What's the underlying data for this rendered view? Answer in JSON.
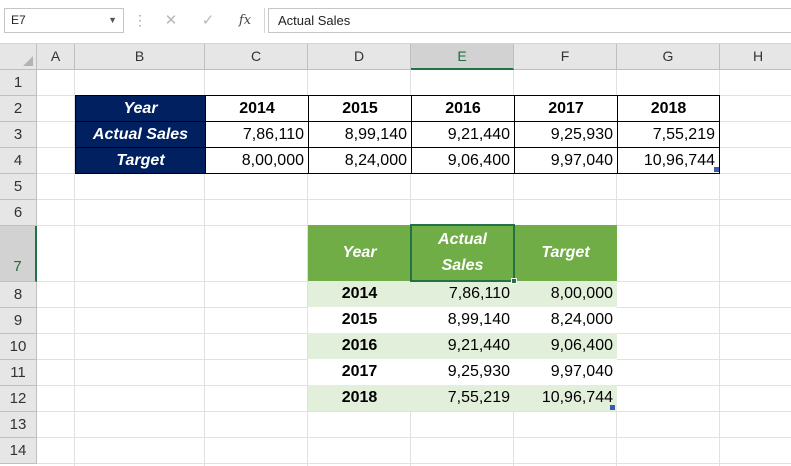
{
  "formula_bar": {
    "name_box": "E7",
    "cancel_glyph": "✕",
    "enter_glyph": "✓",
    "fx_label": "fx",
    "formula": "Actual Sales"
  },
  "columns": [
    "A",
    "B",
    "C",
    "D",
    "E",
    "F",
    "G",
    "H"
  ],
  "rows": [
    "1",
    "2",
    "3",
    "4",
    "5",
    "6",
    "7",
    "8",
    "9",
    "10",
    "11",
    "12",
    "13",
    "14"
  ],
  "selected_cell": "E7",
  "table1": {
    "header": "Year",
    "years": [
      "2014",
      "2015",
      "2016",
      "2017",
      "2018"
    ],
    "actual_label": "Actual Sales",
    "actual": [
      "7,86,110",
      "8,99,140",
      "9,21,440",
      "9,25,930",
      "7,55,219"
    ],
    "target_label": "Target",
    "target": [
      "8,00,000",
      "8,24,000",
      "9,06,400",
      "9,97,040",
      "10,96,744"
    ],
    "header_color": "#002060"
  },
  "table2": {
    "col_year": "Year",
    "col_actual_line1": "Actual",
    "col_actual_line2": "Sales",
    "col_target": "Target",
    "rows": [
      {
        "year": "2014",
        "actual": "7,86,110",
        "target": "8,00,000"
      },
      {
        "year": "2015",
        "actual": "8,99,140",
        "target": "8,24,000"
      },
      {
        "year": "2016",
        "actual": "9,21,440",
        "target": "9,06,400"
      },
      {
        "year": "2017",
        "actual": "9,25,930",
        "target": "9,97,040"
      },
      {
        "year": "2018",
        "actual": "7,55,219",
        "target": "10,96,744"
      }
    ],
    "header_color": "#70ad47",
    "band_color": "#e2efda"
  }
}
